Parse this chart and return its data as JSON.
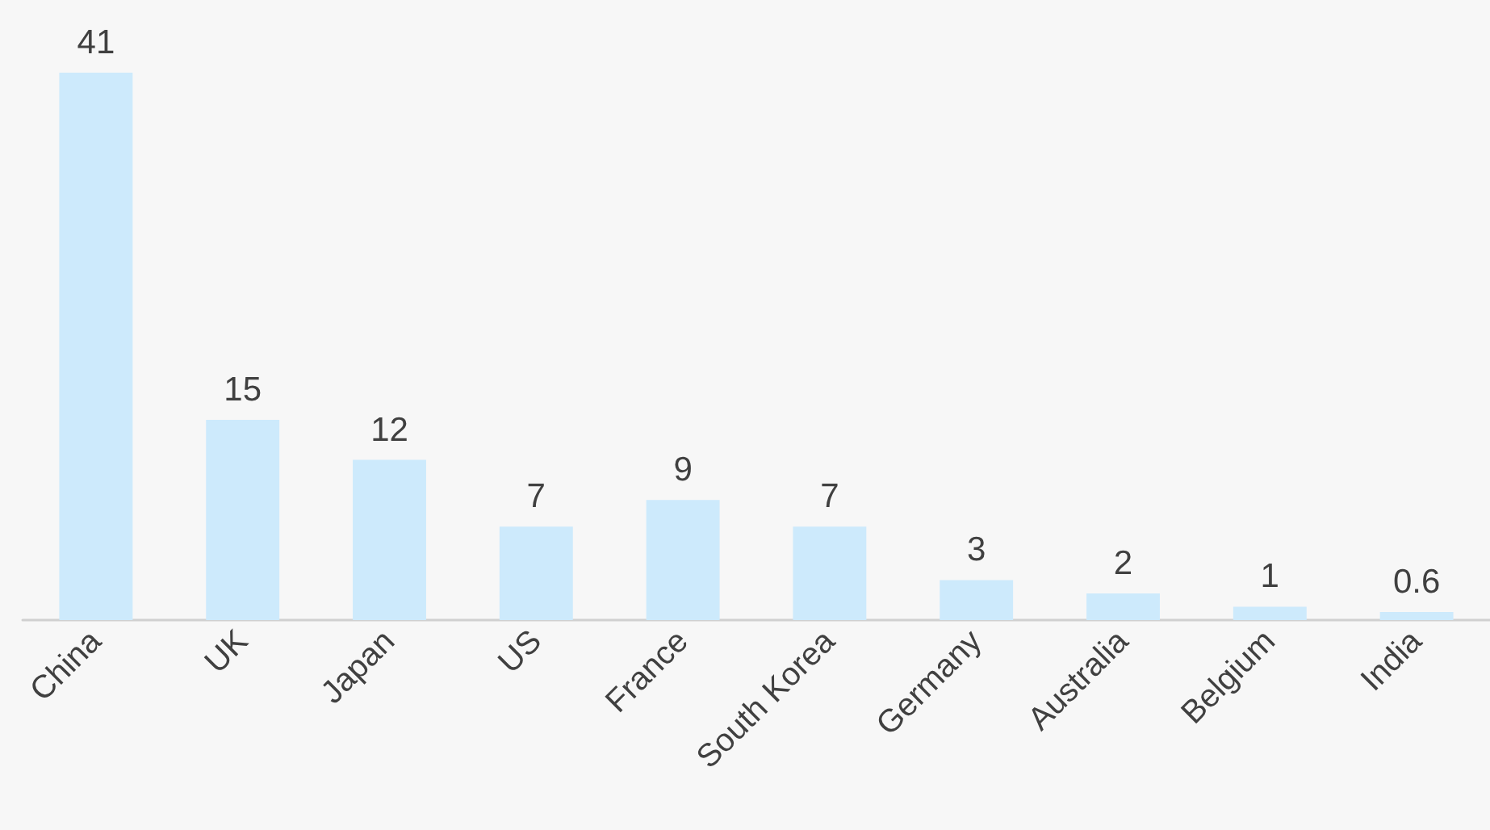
{
  "chart_data": {
    "type": "bar",
    "categories": [
      "China",
      "UK",
      "Japan",
      "US",
      "France",
      "South Korea",
      "Germany",
      "Australia",
      "Belgium",
      "India"
    ],
    "values": [
      41,
      15,
      12,
      7,
      9,
      7,
      3,
      2,
      1,
      0.6
    ],
    "color": "#cdeafc",
    "data_labels": true
  }
}
